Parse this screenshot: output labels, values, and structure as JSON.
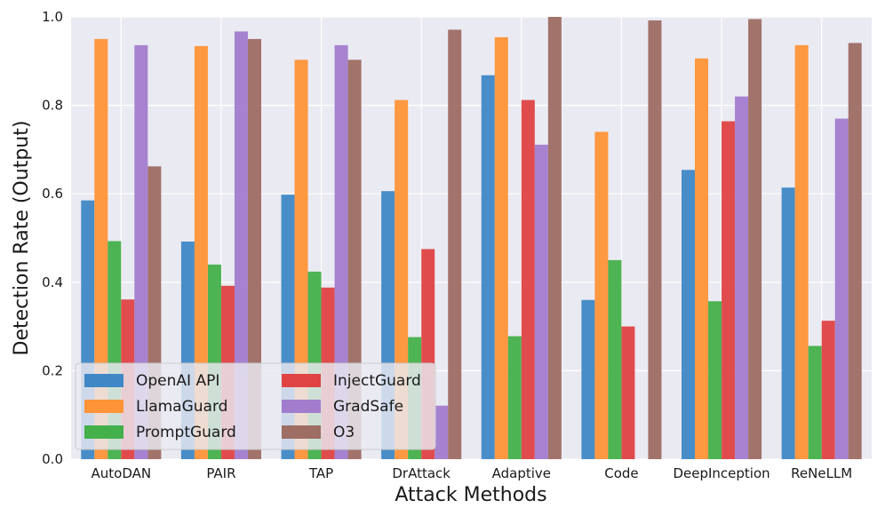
{
  "chart_data": {
    "type": "bar",
    "title": "",
    "xlabel": "Attack Methods",
    "ylabel": "Detection Rate (Output)",
    "ylim": [
      0,
      1.0
    ],
    "yticks": [
      0.0,
      0.2,
      0.4,
      0.6,
      0.8,
      1.0
    ],
    "ytick_labels": [
      "0.0",
      "0.2",
      "0.4",
      "0.6",
      "0.8",
      "1.0"
    ],
    "grid": true,
    "legend_position": "lower-left",
    "categories": [
      "AutoDAN",
      "PAIR",
      "TAP",
      "DrAttack",
      "Adaptive",
      "Code",
      "DeepInception",
      "ReNeLLM"
    ],
    "series": [
      {
        "name": "OpenAI API",
        "color": "#3f88c5",
        "values": [
          0.585,
          0.492,
          0.598,
          0.606,
          0.868,
          0.36,
          0.654,
          0.614
        ]
      },
      {
        "name": "LlamaGuard",
        "color": "#ff9337",
        "values": [
          0.95,
          0.934,
          0.903,
          0.812,
          0.954,
          0.74,
          0.906,
          0.936
        ]
      },
      {
        "name": "PromptGuard",
        "color": "#44b04a",
        "values": [
          0.493,
          0.44,
          0.424,
          0.276,
          0.278,
          0.45,
          0.357,
          0.256
        ]
      },
      {
        "name": "InjectGuard",
        "color": "#df4343",
        "values": [
          0.361,
          0.392,
          0.388,
          0.475,
          0.812,
          0.3,
          0.764,
          0.313
        ]
      },
      {
        "name": "GradSafe",
        "color": "#a27ccd",
        "values": [
          0.936,
          0.967,
          0.936,
          0.121,
          0.711,
          0.0,
          0.82,
          0.77
        ]
      },
      {
        "name": "O3",
        "color": "#9e6d63",
        "values": [
          0.662,
          0.95,
          0.903,
          0.971,
          1.0,
          0.992,
          0.995,
          0.941
        ]
      }
    ]
  }
}
